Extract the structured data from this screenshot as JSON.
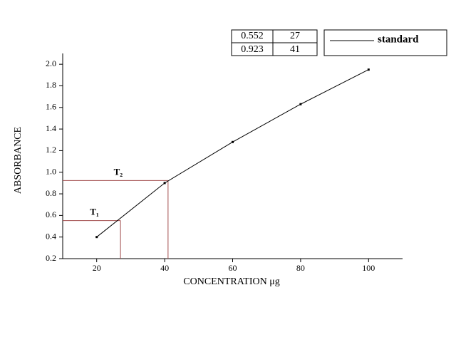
{
  "chart_data": {
    "type": "line",
    "x_label": "CONCENTRATION μg",
    "y_label": "ABSORBANCE",
    "x": [
      20,
      40,
      60,
      80,
      100
    ],
    "series": [
      {
        "name": "standard",
        "color": "#000000",
        "values": [
          0.4,
          0.9,
          1.28,
          1.63,
          1.95
        ]
      }
    ],
    "xlim": [
      10,
      110
    ],
    "xticks": [
      20,
      40,
      60,
      80,
      100
    ],
    "ylim": [
      0.2,
      2.1
    ],
    "yticks": [
      0.2,
      0.4,
      0.6,
      0.8,
      {
        "value": 1,
        "label": "1.0"
      },
      1.2,
      1.4,
      1.6,
      1.8,
      {
        "value": 2,
        "label": "2.0"
      }
    ],
    "annotations": [
      {
        "label": "T₁",
        "x": 27,
        "y": 0.552
      },
      {
        "label": "T₂",
        "x": 41,
        "y": 0.923
      }
    ],
    "annotation_color": "#a04a4a",
    "legend": "top-right"
  }
}
